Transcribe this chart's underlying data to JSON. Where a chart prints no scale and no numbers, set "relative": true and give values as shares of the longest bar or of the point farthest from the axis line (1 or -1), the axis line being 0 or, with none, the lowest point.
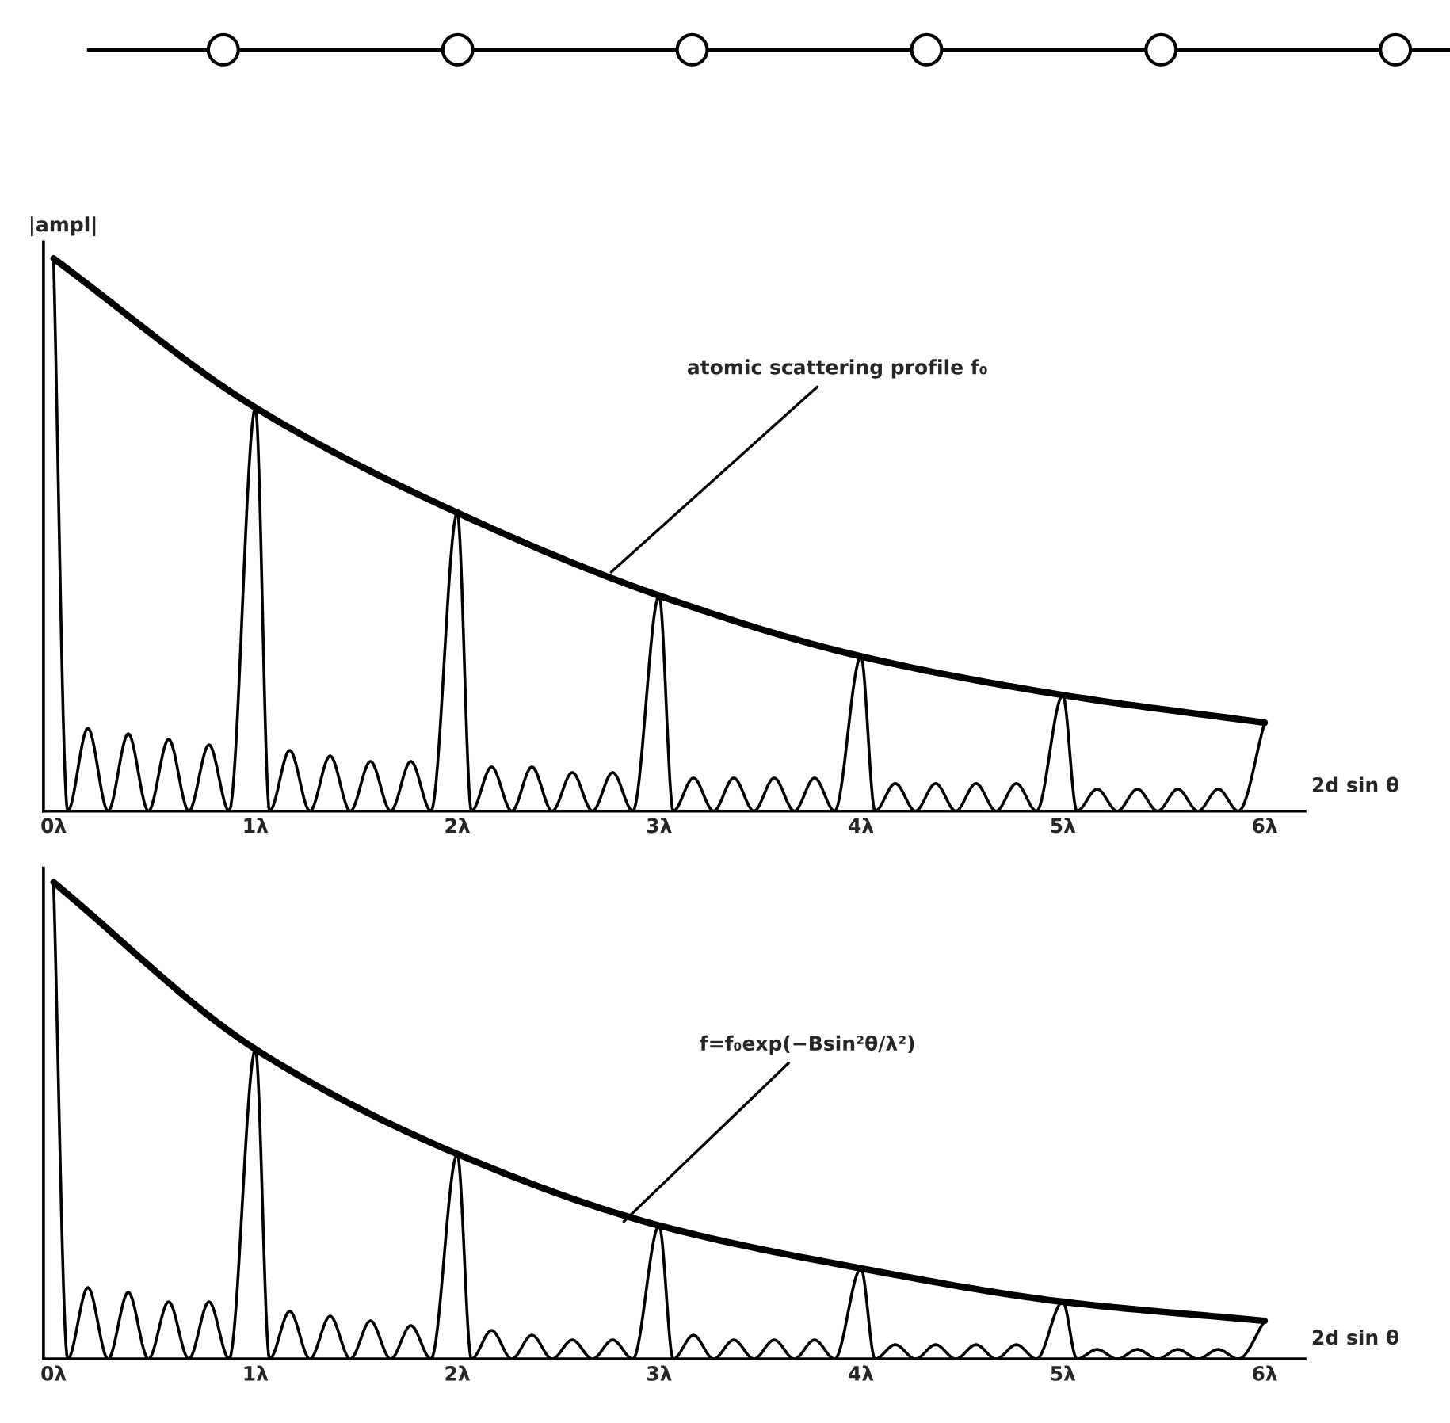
{
  "chart_data": [
    {
      "type": "line",
      "relative": true,
      "ylabel": "|ampl|",
      "xlabel": "2d sin θ",
      "xlim": [
        -0.05,
        6.2
      ],
      "xticks": [
        {
          "value": 0,
          "label": "0λ"
        },
        {
          "value": 1,
          "label": "1λ"
        },
        {
          "value": 2,
          "label": "2λ"
        },
        {
          "value": 3,
          "label": "3λ"
        },
        {
          "value": 4,
          "label": "4λ"
        },
        {
          "value": 5,
          "label": "5λ"
        },
        {
          "value": 6,
          "label": "6λ"
        }
      ],
      "annotations": [
        "atomic scattering profile f₀"
      ],
      "series": [
        {
          "color": "#000000",
          "x": [
            0,
            1,
            2,
            3,
            4,
            5,
            6
          ],
          "values": [
            1,
            0.73,
            0.54,
            0.39,
            0.28,
            0.21,
            0.16
          ]
        },
        {
          "color": "#000000",
          "x": [
            0,
            0.07,
            0.17,
            0.27,
            0.37,
            0.47,
            0.57,
            0.67,
            0.77,
            0.87,
            1,
            1.07,
            1.17,
            1.27,
            1.37,
            1.47,
            1.57,
            1.67,
            1.77,
            1.87,
            2,
            2.07,
            2.17,
            2.27,
            2.37,
            2.47,
            2.57,
            2.67,
            2.77,
            2.87,
            3,
            3.07,
            3.17,
            3.27,
            3.37,
            3.47,
            3.57,
            3.67,
            3.77,
            3.87,
            4,
            4.07,
            4.17,
            4.27,
            4.37,
            4.47,
            4.57,
            4.67,
            4.77,
            4.87,
            5,
            5.07,
            5.17,
            5.27,
            5.37,
            5.47,
            5.57,
            5.67,
            5.77,
            5.87,
            6
          ],
          "values": [
            1,
            0,
            0.15,
            0,
            0.14,
            0,
            0.13,
            0,
            0.12,
            0,
            0.73,
            0,
            0.11,
            0,
            0.1,
            0,
            0.09,
            0,
            0.09,
            0,
            0.54,
            0,
            0.08,
            0,
            0.08,
            0,
            0.07,
            0,
            0.07,
            0,
            0.39,
            0,
            0.06,
            0,
            0.06,
            0,
            0.06,
            0,
            0.06,
            0,
            0.28,
            0,
            0.05,
            0,
            0.05,
            0,
            0.05,
            0,
            0.05,
            0,
            0.21,
            0,
            0.04,
            0,
            0.04,
            0,
            0.04,
            0,
            0.04,
            0,
            0.16
          ]
        }
      ]
    },
    {
      "type": "line",
      "relative": true,
      "xlabel": "2d sin θ",
      "xlim": [
        -0.05,
        6.2
      ],
      "xticks": [
        {
          "value": 0,
          "label": "0λ"
        },
        {
          "value": 1,
          "label": "1λ"
        },
        {
          "value": 2,
          "label": "2λ"
        },
        {
          "value": 3,
          "label": "3λ"
        },
        {
          "value": 4,
          "label": "4λ"
        },
        {
          "value": 5,
          "label": "5λ"
        },
        {
          "value": 6,
          "label": "6λ"
        }
      ],
      "annotations": [
        "f=f₀exp(−Bsin²θ/λ²)"
      ],
      "series": [
        {
          "color": "#000000",
          "x": [
            0,
            1,
            2,
            3,
            4,
            5,
            6
          ],
          "values": [
            1,
            0.65,
            0.43,
            0.28,
            0.19,
            0.12,
            0.08
          ]
        },
        {
          "color": "#000000",
          "x": [
            0,
            0.07,
            0.17,
            0.27,
            0.37,
            0.47,
            0.57,
            0.67,
            0.77,
            0.87,
            1,
            1.07,
            1.17,
            1.27,
            1.37,
            1.47,
            1.57,
            1.67,
            1.77,
            1.87,
            2,
            2.07,
            2.17,
            2.27,
            2.37,
            2.47,
            2.57,
            2.67,
            2.77,
            2.87,
            3,
            3.07,
            3.17,
            3.27,
            3.37,
            3.47,
            3.57,
            3.67,
            3.77,
            3.87,
            4,
            4.07,
            4.17,
            4.27,
            4.37,
            4.47,
            4.57,
            4.67,
            4.77,
            4.87,
            5,
            5.07,
            5.17,
            5.27,
            5.37,
            5.47,
            5.57,
            5.67,
            5.77,
            5.87,
            6
          ],
          "values": [
            1,
            0,
            0.15,
            0,
            0.14,
            0,
            0.12,
            0,
            0.12,
            0,
            0.65,
            0,
            0.1,
            0,
            0.09,
            0,
            0.08,
            0,
            0.07,
            0,
            0.43,
            0,
            0.06,
            0,
            0.05,
            0,
            0.04,
            0,
            0.04,
            0,
            0.28,
            0,
            0.05,
            0,
            0.04,
            0,
            0.04,
            0,
            0.04,
            0,
            0.19,
            0,
            0.03,
            0,
            0.03,
            0,
            0.03,
            0,
            0.03,
            0,
            0.12,
            0,
            0.02,
            0,
            0.02,
            0,
            0.02,
            0,
            0.02,
            0,
            0.08
          ]
        }
      ]
    }
  ]
}
